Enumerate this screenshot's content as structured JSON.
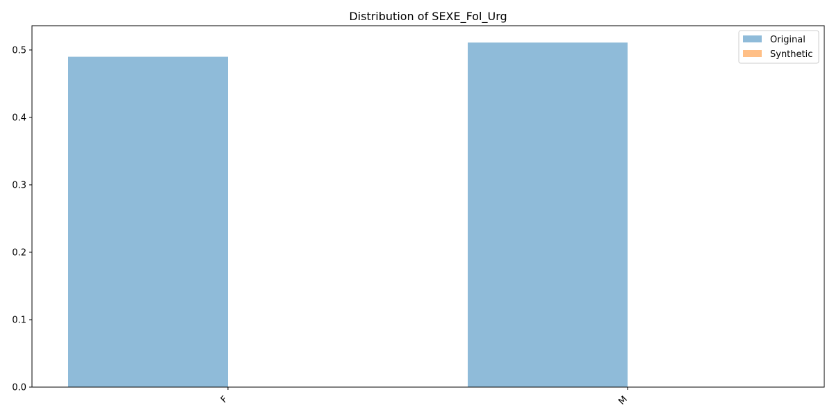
{
  "chart_data": {
    "type": "bar",
    "title": "Distribution of SEXE_Fol_Urg",
    "xlabel": "",
    "ylabel": "",
    "categories": [
      "F",
      "M"
    ],
    "series": [
      {
        "name": "Original",
        "values": [
          0.49,
          0.511
        ],
        "color": "#1f77b4",
        "opacity": 0.5
      },
      {
        "name": "Synthetic",
        "values": [
          0,
          0
        ],
        "color": "#ff7f0e",
        "opacity": 0.5
      }
    ],
    "ylim": [
      0,
      0.536
    ],
    "yticks": [
      0.0,
      0.1,
      0.2,
      0.3,
      0.4,
      0.5
    ],
    "ytick_labels": [
      "0.0",
      "0.1",
      "0.2",
      "0.3",
      "0.4",
      "0.5"
    ],
    "xtick_rotation": 45,
    "grid": false,
    "legend_position": "top-right"
  }
}
